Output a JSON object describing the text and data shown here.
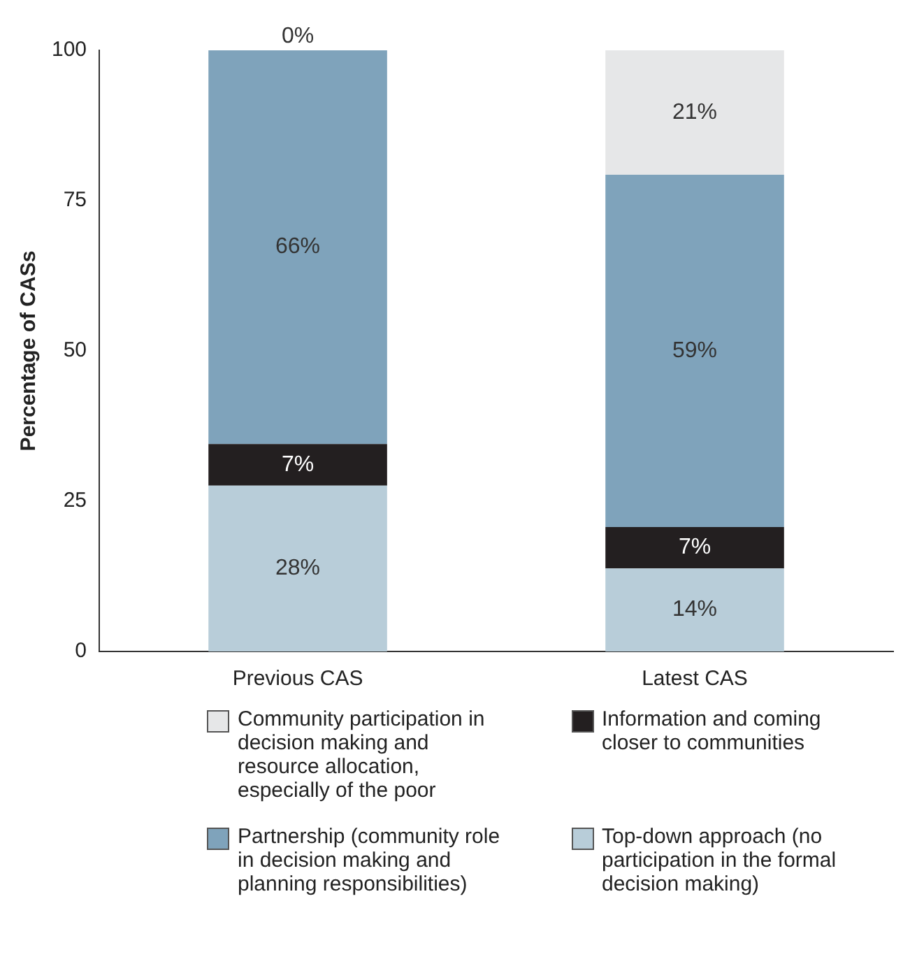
{
  "chart_data": {
    "type": "bar",
    "stacked": true,
    "ylabel": "Percentage of CASs",
    "categories": [
      "Previous CAS",
      "Latest CAS"
    ],
    "ylim": [
      0,
      100
    ],
    "yticks": [
      0,
      25,
      50,
      75,
      100
    ],
    "grid": false,
    "legend": "bottom",
    "series": [
      {
        "name": "Top-down approach (no participation in the formal decision making)",
        "color": "#b8cdd9",
        "values": [
          27.6,
          13.8
        ],
        "value_labels": [
          "28%",
          "14%"
        ]
      },
      {
        "name": "Information and coming closer to communities",
        "color": "#231f20",
        "values": [
          6.9,
          6.9
        ],
        "value_labels": [
          "7%",
          "7%"
        ]
      },
      {
        "name": "Partnership (community role in decision making and planning responsibilities)",
        "color": "#7fa3bb",
        "values": [
          65.5,
          58.6
        ],
        "value_labels": [
          "66%",
          "59%"
        ]
      },
      {
        "name": "Community participation in decision making and resource allocation, especially of the poor",
        "color": "#e6e7e8",
        "values": [
          0,
          20.7
        ],
        "value_labels": [
          "0%",
          "21%"
        ]
      }
    ]
  }
}
